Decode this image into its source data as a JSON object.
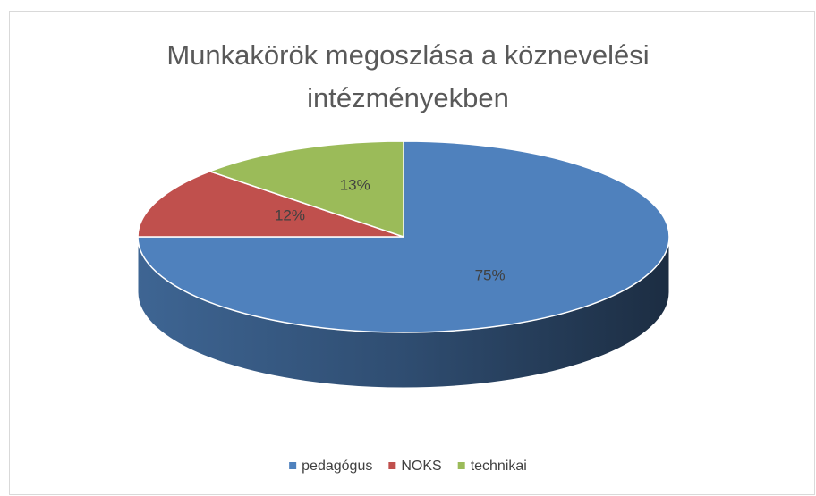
{
  "chart_data": {
    "type": "pie",
    "title": "Munkakörök megoszlása a köznevelési intézményekben",
    "categories": [
      "pedagógus",
      "NOKS",
      "technikai"
    ],
    "series": [
      {
        "name": "pedagógus",
        "color": "#4f81bd"
      },
      {
        "name": "NOKS",
        "color": "#c0504d"
      },
      {
        "name": "technikai",
        "color": "#9bbb59"
      }
    ],
    "values": [
      75,
      12,
      13
    ],
    "value_labels": [
      "75%",
      "12%",
      "13%"
    ],
    "legend": "bottom"
  }
}
